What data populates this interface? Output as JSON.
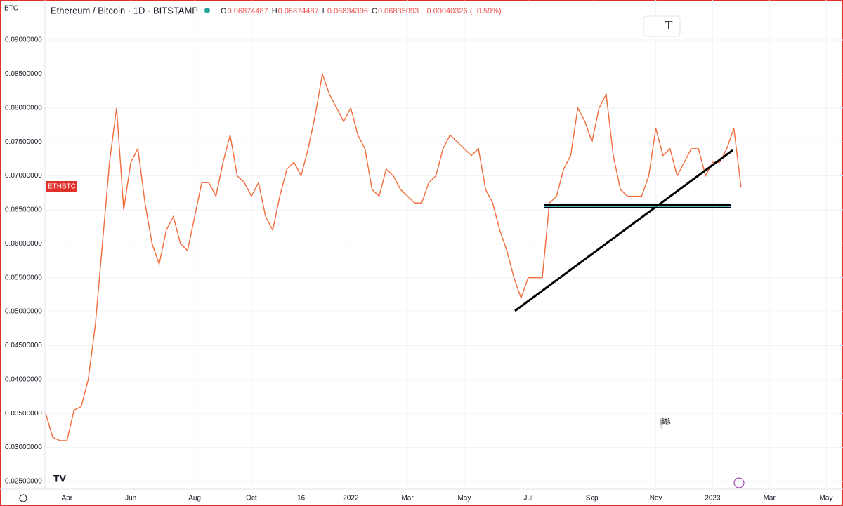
{
  "header": {
    "currency": "BTC",
    "title": "Ethereum / Bitcoin · 1D · BITSTAMP",
    "ohlc": [
      {
        "label": "O",
        "value": "0.06874487"
      },
      {
        "label": "H",
        "value": "0.06874487"
      },
      {
        "label": "L",
        "value": "0.06834396"
      },
      {
        "label": "C",
        "value": "0.06835093"
      }
    ],
    "change": "−0.00040326 (−0.59%)"
  },
  "chart_data": {
    "type": "line",
    "categories": [
      null,
      null,
      null,
      "Apr",
      null,
      null,
      null,
      null,
      null,
      null,
      null,
      null,
      "Jun",
      null,
      null,
      null,
      null,
      null,
      null,
      null,
      null,
      "Aug",
      null,
      null,
      null,
      null,
      null,
      null,
      null,
      "Oct",
      null,
      null,
      null,
      null,
      null,
      null,
      "16",
      null,
      null,
      null,
      null,
      null,
      null,
      "2022",
      null,
      null,
      null,
      null,
      null,
      null,
      null,
      "Mar",
      null,
      null,
      null,
      null,
      null,
      null,
      null,
      "May",
      null,
      null,
      null,
      null,
      null,
      null,
      null,
      null,
      "Jul",
      null,
      null,
      null,
      null,
      null,
      null,
      null,
      null,
      "Sep",
      null,
      null,
      null,
      null,
      null,
      null,
      null,
      null,
      "Nov",
      null,
      null,
      null,
      null,
      null,
      null,
      null,
      "2023",
      null,
      null,
      null,
      null,
      null,
      null,
      null,
      "Mar",
      null,
      null,
      null,
      null,
      null,
      null,
      null,
      "May"
    ],
    "series": [
      {
        "name": "ETHBTC",
        "color": "#f26b3a",
        "values": [
          0.035,
          0.0315,
          0.031,
          0.031,
          0.0355,
          0.036,
          0.04,
          0.048,
          0.06,
          0.072,
          0.08,
          0.065,
          0.072,
          0.074,
          0.066,
          0.06,
          0.057,
          0.062,
          0.064,
          0.06,
          0.059,
          0.064,
          0.069,
          0.069,
          0.067,
          0.072,
          0.076,
          0.07,
          0.069,
          0.067,
          0.069,
          0.064,
          0.062,
          0.067,
          0.071,
          0.072,
          0.07,
          0.074,
          0.079,
          0.085,
          0.082,
          0.08,
          0.078,
          0.08,
          0.076,
          0.074,
          0.068,
          0.067,
          0.071,
          0.07,
          0.068,
          0.067,
          0.066,
          0.066,
          0.069,
          0.07,
          0.074,
          0.076,
          0.075,
          0.074,
          0.073,
          0.074,
          0.068,
          0.066,
          0.062,
          0.059,
          0.055,
          0.052,
          0.055,
          0.055,
          0.055,
          0.066,
          0.067,
          0.071,
          0.073,
          0.08,
          0.078,
          0.075,
          0.08,
          0.082,
          0.073,
          0.068,
          0.067,
          0.067,
          0.067,
          0.07,
          0.077,
          0.073,
          0.074,
          0.07,
          0.072,
          0.074,
          0.074,
          0.07,
          0.072,
          0.072,
          0.074,
          0.077,
          0.0684,
          null,
          null,
          null,
          null,
          null,
          null,
          null,
          null,
          null,
          null,
          null,
          null
        ]
      }
    ],
    "ylim": [
      0.02386,
      0.09589
    ],
    "yticks": [
      {
        "value": 0.025,
        "label": "0.02500000"
      },
      {
        "value": 0.03,
        "label": "0.03000000"
      },
      {
        "value": 0.035,
        "label": "0.03500000"
      },
      {
        "value": 0.04,
        "label": "0.04000000"
      },
      {
        "value": 0.045,
        "label": "0.04500000"
      },
      {
        "value": 0.05,
        "label": "0.05000000"
      },
      {
        "value": 0.055,
        "label": "0.05500000"
      },
      {
        "value": 0.06,
        "label": "0.06000000"
      },
      {
        "value": 0.065,
        "label": "0.06500000"
      },
      {
        "value": 0.07,
        "label": "0.07000000"
      },
      {
        "value": 0.075,
        "label": "0.07500000"
      },
      {
        "value": 0.08,
        "label": "0.08000000"
      },
      {
        "value": 0.085,
        "label": "0.08500000"
      },
      {
        "value": 0.09,
        "label": "0.09000000"
      }
    ],
    "grid": true
  }
}
